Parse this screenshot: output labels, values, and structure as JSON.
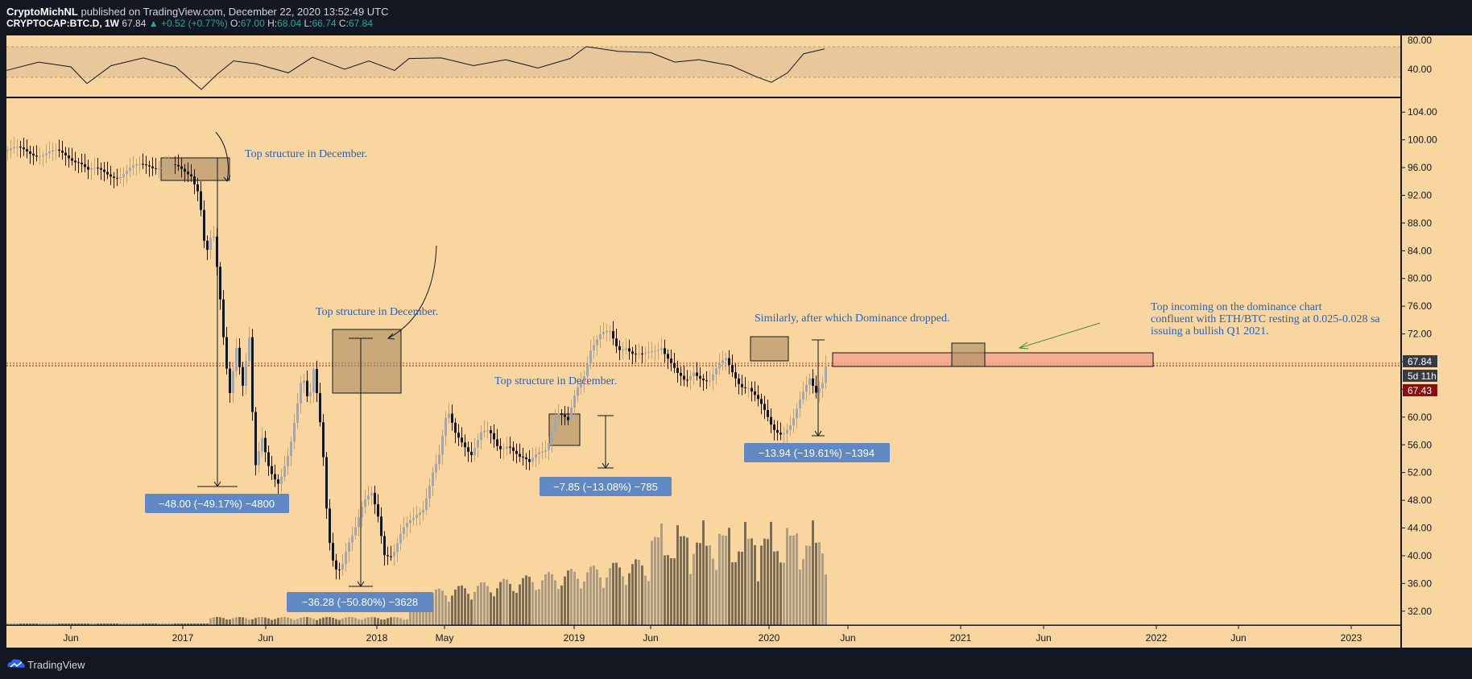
{
  "header": {
    "author": "CryptoMichNL",
    "published": "published on TradingView.com, December 22, 2020 13:52:49 UTC",
    "symbol": "CRYPTOCAP:BTC.D, 1W",
    "last": "67.84",
    "change": "+0.52 (+0.77%)",
    "o_label": "O:",
    "o_value": "67.00",
    "h_label": "H:",
    "h_value": "68.04",
    "l_label": "L:",
    "l_value": "66.74",
    "c_label": "C:",
    "c_value": "67.84"
  },
  "footer": {
    "brand": "TradingView"
  },
  "colors": {
    "background": "#f9d59f",
    "up_candle": "#a7a7a7",
    "down_candle": "#131722",
    "rsi_band": "#e8c79a",
    "zone_fill": "#f0a48a",
    "box_fill": "#a98c63",
    "label_bg": "#5f88c4",
    "price_label": "#363a45",
    "red_label": "#8b0e0e",
    "annotation_text": "#2962b5"
  },
  "chart_data": {
    "type": "candlestick",
    "symbol": "CRYPTOCAP:BTC.D",
    "timeframe": "1W",
    "ylim": [
      30,
      106
    ],
    "y_ticks": [
      "104.00",
      "100.00",
      "96.00",
      "92.00",
      "88.00",
      "84.00",
      "80.00",
      "76.00",
      "72.00",
      "68.00",
      "64.00",
      "60.00",
      "56.00",
      "52.00",
      "48.00",
      "44.00",
      "40.00",
      "36.00",
      "32.00"
    ],
    "x_ticks": [
      "Jun",
      "2017",
      "Jun",
      "2018",
      "May",
      "2019",
      "Jun",
      "2020",
      "Jun",
      "2021",
      "Jun",
      "2022",
      "Jun",
      "2023"
    ],
    "close_series": [
      [
        0,
        98.5
      ],
      [
        60,
        98.0
      ],
      [
        90,
        97.2
      ],
      [
        100,
        95.5
      ],
      [
        140,
        95.0
      ],
      [
        175,
        96.6
      ],
      [
        200,
        96.0
      ],
      [
        228,
        95.3
      ],
      [
        238,
        92.5
      ],
      [
        246,
        83.0
      ],
      [
        255,
        86.5
      ],
      [
        263,
        78.0
      ],
      [
        270,
        69.0
      ],
      [
        276,
        64.0
      ],
      [
        284,
        70.5
      ],
      [
        292,
        64.5
      ],
      [
        300,
        71.0
      ],
      [
        307,
        52.0
      ],
      [
        316,
        57.0
      ],
      [
        325,
        53.0
      ],
      [
        337,
        50.5
      ],
      [
        350,
        54.5
      ],
      [
        358,
        60.0
      ],
      [
        366,
        66.5
      ],
      [
        374,
        62.5
      ],
      [
        380,
        67.5
      ],
      [
        386,
        62.0
      ],
      [
        392,
        54.0
      ],
      [
        398,
        42.5
      ],
      [
        406,
        37.5
      ],
      [
        414,
        38.0
      ],
      [
        422,
        42.0
      ],
      [
        432,
        44.5
      ],
      [
        442,
        47.5
      ],
      [
        452,
        48.5
      ],
      [
        460,
        45.5
      ],
      [
        468,
        40.5
      ],
      [
        478,
        40.5
      ],
      [
        490,
        43.5
      ],
      [
        504,
        45.0
      ],
      [
        516,
        47.0
      ],
      [
        528,
        52.5
      ],
      [
        536,
        54.5
      ],
      [
        546,
        60.5
      ],
      [
        556,
        57.5
      ],
      [
        566,
        56.5
      ],
      [
        576,
        55.0
      ],
      [
        588,
        57.5
      ],
      [
        598,
        57.5
      ],
      [
        610,
        55.5
      ],
      [
        622,
        56.5
      ],
      [
        636,
        54.0
      ],
      [
        648,
        53.0
      ],
      [
        658,
        55.0
      ],
      [
        670,
        56.0
      ],
      [
        682,
        60.5
      ],
      [
        696,
        59.0
      ],
      [
        706,
        64.0
      ],
      [
        716,
        66.5
      ],
      [
        724,
        70.0
      ],
      [
        736,
        71.5
      ],
      [
        748,
        72.0
      ],
      [
        758,
        70.0
      ],
      [
        768,
        70.5
      ],
      [
        778,
        69.0
      ],
      [
        790,
        68.5
      ],
      [
        802,
        69.5
      ],
      [
        812,
        70.5
      ],
      [
        822,
        68.5
      ],
      [
        832,
        66.0
      ],
      [
        842,
        64.5
      ],
      [
        852,
        66.5
      ],
      [
        862,
        66.0
      ],
      [
        872,
        65.5
      ],
      [
        882,
        67.0
      ],
      [
        892,
        68.0
      ],
      [
        900,
        66.5
      ],
      [
        910,
        65.0
      ],
      [
        920,
        64.5
      ],
      [
        930,
        62.5
      ],
      [
        940,
        60.5
      ],
      [
        950,
        58.5
      ],
      [
        962,
        58.0
      ],
      [
        974,
        59.0
      ],
      [
        986,
        62.5
      ],
      [
        996,
        65.5
      ],
      [
        1004,
        64.0
      ],
      [
        1012,
        65.5
      ],
      [
        1016,
        67.84
      ]
    ],
    "current_price": "67.84",
    "countdown": "5d 11h",
    "other_price": "67.43",
    "rsi": {
      "ticks": [
        "80.00",
        "40.00"
      ],
      "series": [
        [
          0,
          44
        ],
        [
          40,
          58
        ],
        [
          80,
          50
        ],
        [
          100,
          22
        ],
        [
          130,
          52
        ],
        [
          170,
          65
        ],
        [
          210,
          50
        ],
        [
          242,
          12
        ],
        [
          262,
          38
        ],
        [
          282,
          60
        ],
        [
          310,
          55
        ],
        [
          350,
          40
        ],
        [
          380,
          66
        ],
        [
          420,
          46
        ],
        [
          450,
          60
        ],
        [
          482,
          44
        ],
        [
          500,
          64
        ],
        [
          540,
          65
        ],
        [
          580,
          52
        ],
        [
          620,
          62
        ],
        [
          660,
          48
        ],
        [
          700,
          64
        ],
        [
          720,
          84
        ],
        [
          760,
          76
        ],
        [
          800,
          74
        ],
        [
          830,
          58
        ],
        [
          860,
          62
        ],
        [
          900,
          52
        ],
        [
          930,
          34
        ],
        [
          950,
          24
        ],
        [
          970,
          40
        ],
        [
          990,
          72
        ],
        [
          1016,
          80
        ]
      ]
    },
    "annotations": [
      {
        "text": "Top structure in December.",
        "kind": "text"
      },
      {
        "text": "Top structure in December.",
        "kind": "text"
      },
      {
        "text": "Top structure in December.",
        "kind": "text"
      },
      {
        "text": "Similarly, after which Dominance dropped.",
        "kind": "text"
      },
      {
        "lines": [
          "Top incoming on the dominance chart",
          "confluent with ETH/BTC resting at 0.025-0.028 sa",
          "issuing a bullish Q1 2021."
        ],
        "kind": "text"
      }
    ],
    "measurements": [
      {
        "text": "−48.00 (−49.17%) −4800"
      },
      {
        "text": "−36.28 (−50.80%) −3628"
      },
      {
        "text": "−7.85 (−13.08%) −785"
      },
      {
        "text": "−13.94 (−19.61%) −1394"
      }
    ]
  }
}
